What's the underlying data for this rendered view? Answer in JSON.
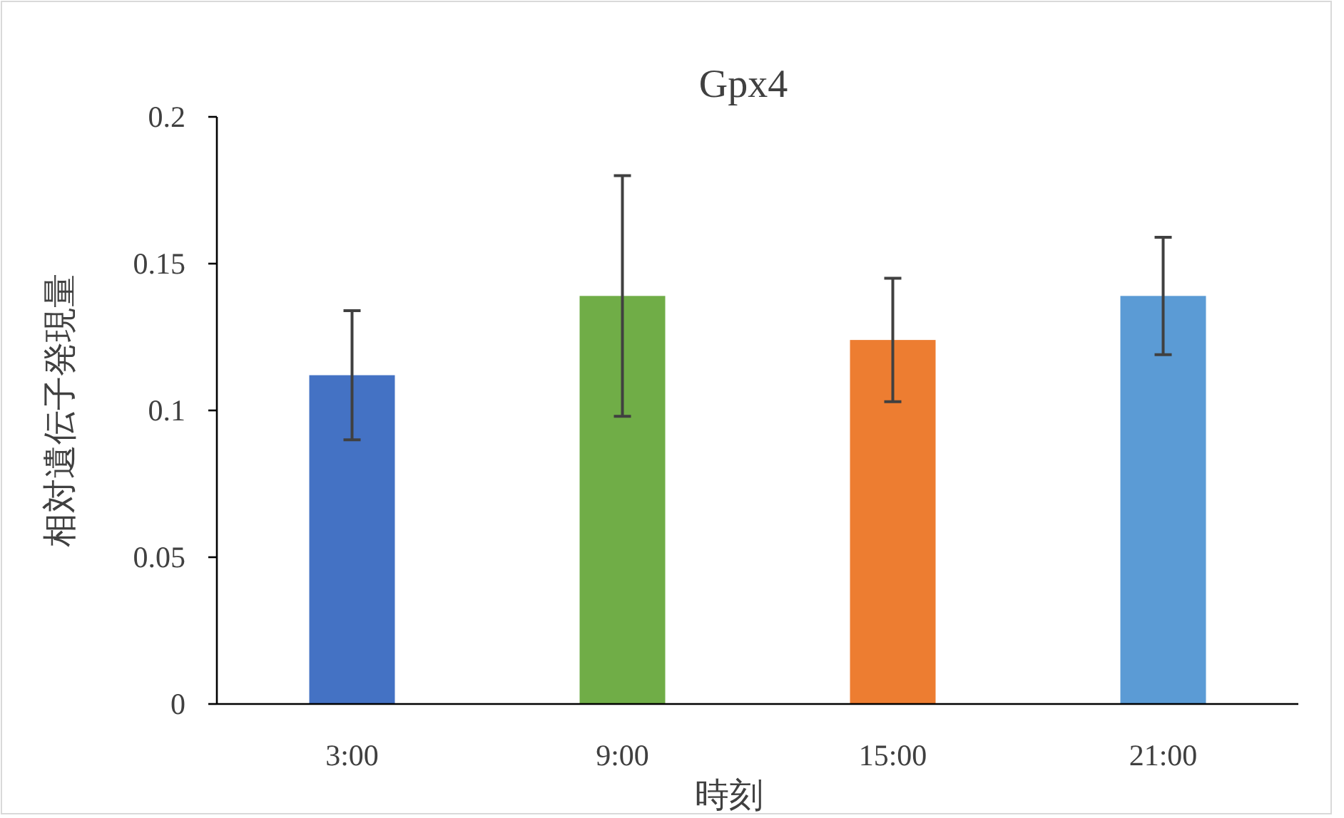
{
  "chart_data": {
    "type": "bar",
    "title": "Gpx4",
    "xlabel": "時刻",
    "ylabel": "相対遺伝子発現量",
    "categories": [
      "3:00",
      "9:00",
      "15:00",
      "21:00"
    ],
    "values": [
      0.112,
      0.139,
      0.124,
      0.139
    ],
    "colors": [
      "#4472c4",
      "#70ad47",
      "#ed7d31",
      "#5b9bd5"
    ],
    "errors": [
      0.022,
      0.041,
      0.021,
      0.02
    ],
    "ylim": [
      0,
      0.2
    ],
    "yticks": [
      0,
      0.05,
      0.1,
      0.15,
      0.2
    ],
    "grid": false
  }
}
